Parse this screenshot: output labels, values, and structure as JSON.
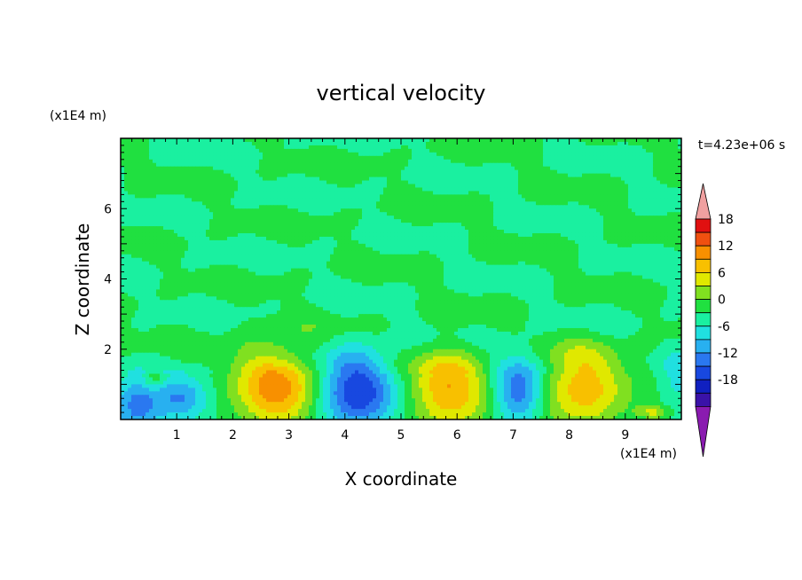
{
  "chart_data": {
    "type": "heatmap",
    "title": "vertical velocity",
    "xlabel": "X coordinate",
    "ylabel": "Z coordinate",
    "x_unit": "(x1E4 m)",
    "y_unit": "(x1E4 m)",
    "time_label": "t=4.23e+06 s",
    "xlim": [
      0,
      10
    ],
    "ylim": [
      0,
      8
    ],
    "x_ticks": [
      "1",
      "2",
      "3",
      "4",
      "5",
      "6",
      "7",
      "8",
      "9"
    ],
    "y_ticks": [
      "2",
      "4",
      "6"
    ],
    "colorbar": {
      "labels": [
        "18",
        "12",
        "6",
        "0",
        "-6",
        "-12",
        "-18"
      ],
      "levels": [
        -21,
        -18,
        -15,
        -12,
        -9,
        -6,
        -3,
        0,
        3,
        6,
        9,
        12,
        15,
        18,
        21
      ],
      "colors": [
        "#8a1bb0",
        "#3a12a8",
        "#1020c0",
        "#1848e0",
        "#2a78f0",
        "#28b0f0",
        "#20e0e0",
        "#1af0a0",
        "#20e040",
        "#80e020",
        "#e0e800",
        "#f8c000",
        "#f89000",
        "#f05010",
        "#e01010",
        "#f0a0a0"
      ]
    },
    "cells": [
      {
        "x": 0.3,
        "z": 0.4,
        "w": -11.0,
        "rx": 0.45,
        "rz": 0.75
      },
      {
        "x": 1.1,
        "z": 0.6,
        "w": -9.0,
        "rx": 0.45,
        "rz": 0.6
      },
      {
        "x": 0.6,
        "z": 1.15,
        "w": 5.0,
        "rx": 0.18,
        "rz": 0.3
      },
      {
        "x": 2.8,
        "z": 0.9,
        "w": 14.0,
        "rx": 0.75,
        "rz": 1.15
      },
      {
        "x": 4.2,
        "z": 0.8,
        "w": -15.0,
        "rx": 0.7,
        "rz": 1.1
      },
      {
        "x": 5.85,
        "z": 0.85,
        "w": 12.0,
        "rx": 0.72,
        "rz": 1.1
      },
      {
        "x": 7.1,
        "z": 0.85,
        "w": -12.0,
        "rx": 0.45,
        "rz": 1.0
      },
      {
        "x": 8.25,
        "z": 0.9,
        "w": 11.0,
        "rx": 0.75,
        "rz": 1.1
      },
      {
        "x": 9.5,
        "z": 0.2,
        "w": 7.0,
        "rx": 0.3,
        "rz": 0.2
      },
      {
        "x": 9.9,
        "z": 1.0,
        "w": -4.0,
        "rx": 0.3,
        "rz": 0.9
      }
    ]
  }
}
